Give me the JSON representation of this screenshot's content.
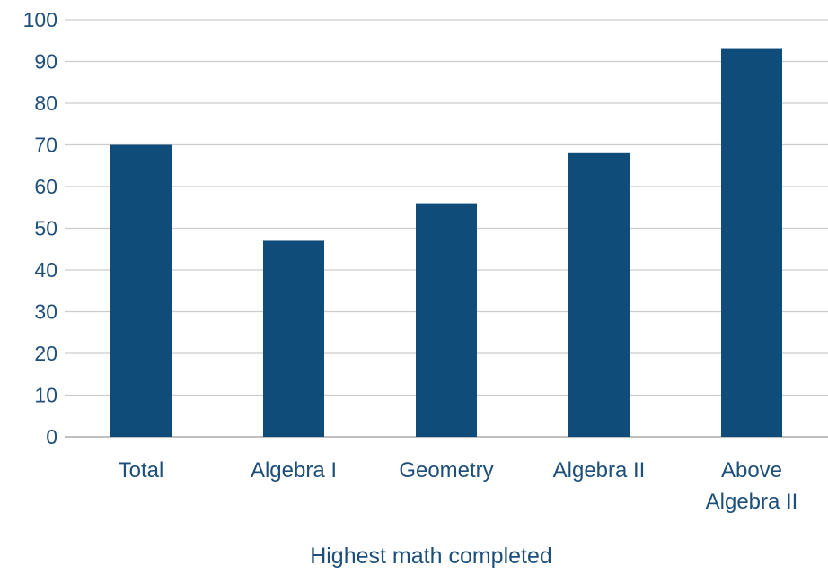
{
  "chart_data": {
    "type": "bar",
    "categories": [
      [
        "Total"
      ],
      [
        "Algebra I"
      ],
      [
        "Geometry"
      ],
      [
        "Algebra II"
      ],
      [
        "Above",
        "Algebra II"
      ]
    ],
    "values": [
      70,
      47,
      56,
      68,
      93
    ],
    "title": "",
    "xlabel": "Highest math completed",
    "ylabel": "",
    "ylim": [
      0,
      100
    ],
    "yticks": [
      0,
      10,
      20,
      30,
      40,
      50,
      60,
      70,
      80,
      90,
      100
    ],
    "grid": "horizontal",
    "bar_color": "#0f4c7a"
  }
}
